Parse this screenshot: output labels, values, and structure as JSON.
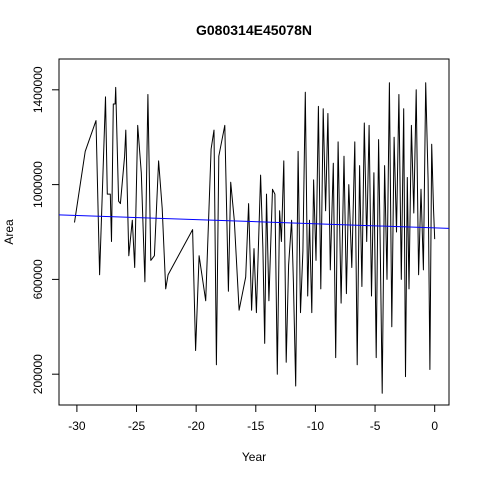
{
  "chart_data": {
    "type": "line",
    "title": "G080314E45078N",
    "xlabel": "Year",
    "ylabel": "Area",
    "xlim": [
      -31.5,
      1.2
    ],
    "ylim": [
      70000,
      1530000
    ],
    "x_ticks": [
      -30,
      -25,
      -20,
      -15,
      -10,
      -5,
      0
    ],
    "y_ticks": [
      200000,
      600000,
      1000000,
      1400000
    ],
    "series": [
      {
        "style": "line",
        "color": "#000000",
        "points": [
          [
            -30.2,
            840000
          ],
          [
            -29.3,
            1140000
          ],
          [
            -28.4,
            1270000
          ],
          [
            -28.1,
            620000
          ],
          [
            -27.6,
            1370000
          ],
          [
            -27.45,
            960000
          ],
          [
            -27.2,
            960000
          ],
          [
            -27.1,
            760000
          ],
          [
            -26.95,
            1340000
          ],
          [
            -26.8,
            1340000
          ],
          [
            -26.75,
            1410000
          ],
          [
            -26.5,
            930000
          ],
          [
            -26.35,
            920000
          ],
          [
            -26.0,
            1120000
          ],
          [
            -25.9,
            1230000
          ],
          [
            -25.65,
            700000
          ],
          [
            -25.35,
            850000
          ],
          [
            -25.15,
            650000
          ],
          [
            -24.9,
            1250000
          ],
          [
            -24.6,
            1050000
          ],
          [
            -24.3,
            590000
          ],
          [
            -24.05,
            1380000
          ],
          [
            -23.8,
            680000
          ],
          [
            -23.5,
            700000
          ],
          [
            -23.15,
            1100000
          ],
          [
            -22.85,
            900000
          ],
          [
            -22.55,
            560000
          ],
          [
            -22.35,
            620000
          ],
          [
            -20.3,
            810000
          ],
          [
            -20.05,
            300000
          ],
          [
            -19.75,
            700000
          ],
          [
            -19.2,
            510000
          ],
          [
            -18.75,
            1150000
          ],
          [
            -18.5,
            1230000
          ],
          [
            -18.3,
            240000
          ],
          [
            -18.1,
            1120000
          ],
          [
            -17.6,
            1250000
          ],
          [
            -17.3,
            550000
          ],
          [
            -17.1,
            1010000
          ],
          [
            -16.8,
            850000
          ],
          [
            -16.4,
            470000
          ],
          [
            -15.85,
            610000
          ],
          [
            -15.6,
            920000
          ],
          [
            -15.35,
            470000
          ],
          [
            -15.15,
            730000
          ],
          [
            -14.95,
            460000
          ],
          [
            -14.6,
            1040000
          ],
          [
            -14.4,
            730000
          ],
          [
            -14.25,
            330000
          ],
          [
            -14.1,
            960000
          ],
          [
            -13.9,
            510000
          ],
          [
            -13.6,
            980000
          ],
          [
            -13.4,
            960000
          ],
          [
            -13.2,
            200000
          ],
          [
            -13.0,
            890000
          ],
          [
            -12.85,
            760000
          ],
          [
            -12.65,
            1100000
          ],
          [
            -12.45,
            250000
          ],
          [
            -12.25,
            660000
          ],
          [
            -12.0,
            850000
          ],
          [
            -11.85,
            590000
          ],
          [
            -11.65,
            150000
          ],
          [
            -11.45,
            1140000
          ],
          [
            -11.25,
            460000
          ],
          [
            -11.05,
            720000
          ],
          [
            -10.85,
            1390000
          ],
          [
            -10.65,
            530000
          ],
          [
            -10.5,
            850000
          ],
          [
            -10.3,
            460000
          ],
          [
            -10.15,
            1020000
          ],
          [
            -9.95,
            680000
          ],
          [
            -9.75,
            1330000
          ],
          [
            -9.55,
            560000
          ],
          [
            -9.35,
            1320000
          ],
          [
            -9.15,
            890000
          ],
          [
            -8.95,
            1300000
          ],
          [
            -8.75,
            640000
          ],
          [
            -8.5,
            1090000
          ],
          [
            -8.3,
            270000
          ],
          [
            -8.1,
            1180000
          ],
          [
            -7.85,
            500000
          ],
          [
            -7.6,
            1120000
          ],
          [
            -7.4,
            540000
          ],
          [
            -7.2,
            1000000
          ],
          [
            -6.95,
            650000
          ],
          [
            -6.7,
            1180000
          ],
          [
            -6.5,
            240000
          ],
          [
            -6.3,
            1080000
          ],
          [
            -6.1,
            570000
          ],
          [
            -5.9,
            1260000
          ],
          [
            -5.7,
            760000
          ],
          [
            -5.5,
            1250000
          ],
          [
            -5.3,
            530000
          ],
          [
            -5.1,
            1050000
          ],
          [
            -4.9,
            270000
          ],
          [
            -4.7,
            1190000
          ],
          [
            -4.55,
            690000
          ],
          [
            -4.4,
            120000
          ],
          [
            -4.2,
            1080000
          ],
          [
            -4.0,
            600000
          ],
          [
            -3.8,
            1430000
          ],
          [
            -3.6,
            400000
          ],
          [
            -3.4,
            1200000
          ],
          [
            -3.2,
            800000
          ],
          [
            -3.0,
            1380000
          ],
          [
            -2.8,
            600000
          ],
          [
            -2.6,
            1320000
          ],
          [
            -2.45,
            190000
          ],
          [
            -2.3,
            1030000
          ],
          [
            -2.15,
            560000
          ],
          [
            -1.95,
            1250000
          ],
          [
            -1.75,
            880000
          ],
          [
            -1.55,
            1400000
          ],
          [
            -1.35,
            620000
          ],
          [
            -1.15,
            980000
          ],
          [
            -0.95,
            640000
          ],
          [
            -0.75,
            1430000
          ],
          [
            -0.55,
            1020000
          ],
          [
            -0.4,
            220000
          ],
          [
            -0.25,
            1170000
          ],
          [
            -0.1,
            900000
          ],
          [
            0.0,
            770000
          ]
        ]
      },
      {
        "style": "regression",
        "color": "#0000ff",
        "points": [
          [
            -31.5,
            872000
          ],
          [
            1.2,
            815000
          ]
        ]
      }
    ]
  }
}
